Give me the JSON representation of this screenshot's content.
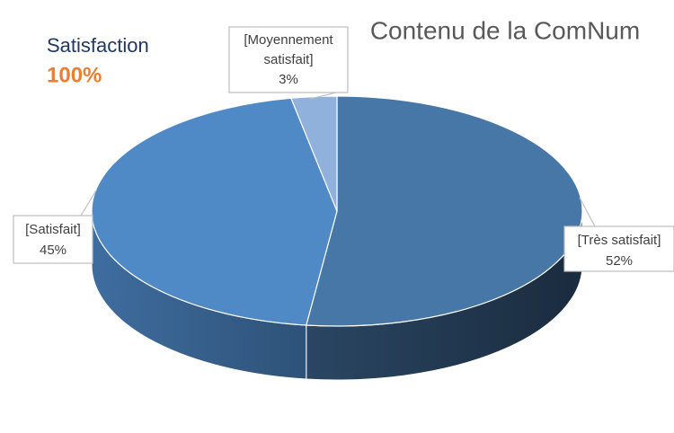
{
  "chart_data": {
    "type": "pie",
    "title": "Contenu de la ComNum",
    "annotation": {
      "label": "Satisfaction",
      "value": "100%"
    },
    "categories": [
      "[Très satisfait]",
      "[Satisfait]",
      "[Moyennement satisfait]"
    ],
    "values": [
      52,
      45,
      3
    ],
    "value_labels": [
      "52%",
      "45%",
      "3%"
    ],
    "colors": [
      "#4677a7",
      "#4f89c6",
      "#8fb1dc"
    ]
  }
}
